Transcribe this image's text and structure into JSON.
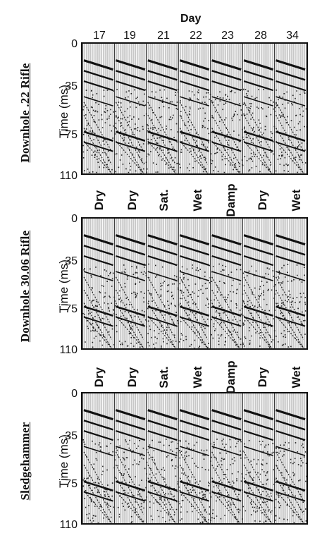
{
  "figure": {
    "day_title": "Day",
    "days": [
      "17",
      "19",
      "21",
      "22",
      "23",
      "28",
      "34"
    ],
    "y_axis_label": "Time  (ms)",
    "y_ticks": [
      "0",
      "35",
      "75",
      "110"
    ],
    "conditions": [
      "Dry",
      "Dry",
      "Sat.",
      "Wet",
      "Damp",
      "Dry",
      "Wet"
    ],
    "panels": [
      {
        "label": "Downhole .22 Rifle"
      },
      {
        "label": "Downhole 30.06 Rifle"
      },
      {
        "label": "Sledgehammer"
      }
    ]
  }
}
